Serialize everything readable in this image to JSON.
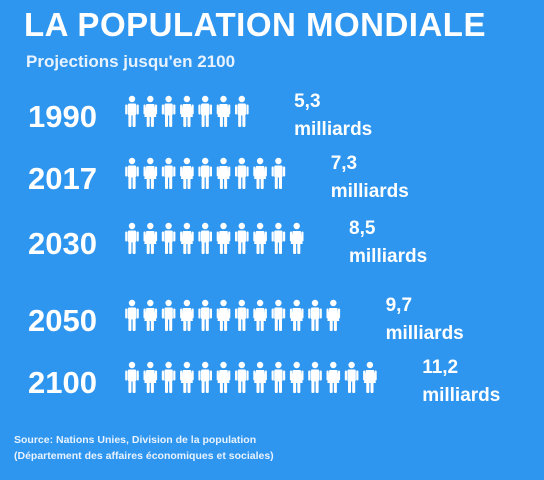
{
  "header": {
    "title": "LA POPULATION MONDIALE",
    "subtitle": "Projections jusqu'en 2100"
  },
  "source": {
    "line1": "Source:  Nations Unies, Division de la population",
    "line2": "(Département des affaires économiques et sociales)"
  },
  "colors": {
    "background": "#2f96f0",
    "foreground": "#ffffff"
  },
  "chart_data": {
    "type": "bar",
    "title": "LA POPULATION MONDIALE",
    "subtitle": "Projections jusqu'en 2100",
    "mark": "person-icons",
    "categories": [
      "1990",
      "2017",
      "2030",
      "2050",
      "2100"
    ],
    "values": [
      5.3,
      7.3,
      8.5,
      9.7,
      11.2
    ],
    "icon_counts": [
      7,
      9,
      10,
      12,
      14
    ],
    "value_labels": [
      "5,3",
      "7,3",
      "8,5",
      "9,7",
      "11,2"
    ],
    "unit_label": "milliards"
  }
}
